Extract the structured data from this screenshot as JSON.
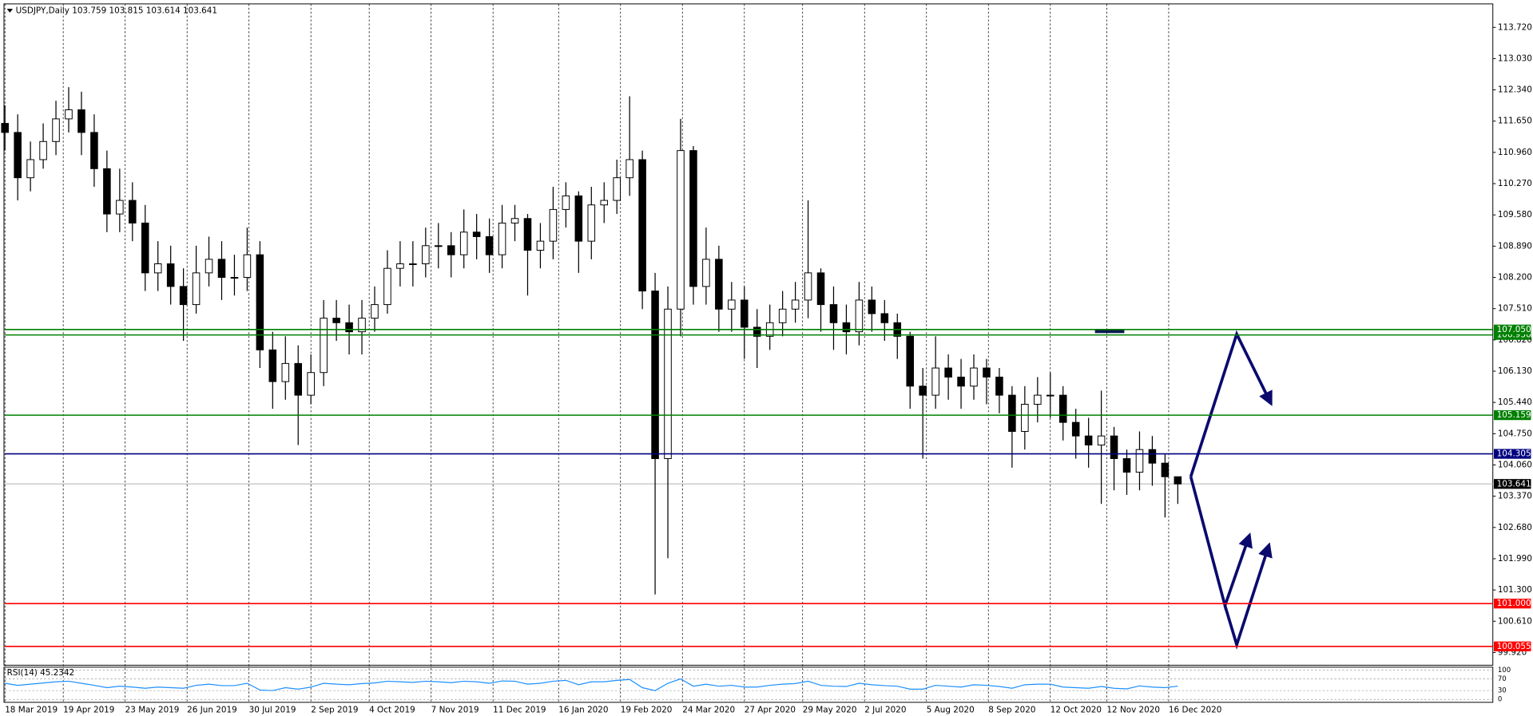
{
  "chart_data": {
    "type": "candlestick",
    "title": "USDJPY,Daily  103.759 103.815 103.614 103.641",
    "x": [
      "2019-03-18",
      "2019-03-25",
      "2019-04-01",
      "2019-04-08",
      "2019-04-15",
      "2019-04-22",
      "2019-04-29",
      "2019-05-06",
      "2019-05-13",
      "2019-05-20",
      "2019-05-27",
      "2019-06-03",
      "2019-06-10",
      "2019-06-17",
      "2019-06-24",
      "2019-07-01",
      "2019-07-08",
      "2019-07-15",
      "2019-07-22",
      "2019-07-29",
      "2019-08-05",
      "2019-08-12",
      "2019-08-19",
      "2019-08-26",
      "2019-09-02",
      "2019-09-09",
      "2019-09-16",
      "2019-09-23",
      "2019-09-30",
      "2019-10-07",
      "2019-10-14",
      "2019-10-21",
      "2019-10-28",
      "2019-11-04",
      "2019-11-11",
      "2019-11-18",
      "2019-11-25",
      "2019-12-02",
      "2019-12-09",
      "2019-12-16",
      "2019-12-23",
      "2019-12-30",
      "2020-01-06",
      "2020-01-13",
      "2020-01-20",
      "2020-01-27",
      "2020-02-03",
      "2020-02-10",
      "2020-02-17",
      "2020-02-24",
      "2020-03-02",
      "2020-03-09",
      "2020-03-16",
      "2020-03-23",
      "2020-03-30",
      "2020-04-06",
      "2020-04-13",
      "2020-04-20",
      "2020-04-27",
      "2020-05-04",
      "2020-05-11",
      "2020-05-18",
      "2020-05-25",
      "2020-06-01",
      "2020-06-08",
      "2020-06-15",
      "2020-06-22",
      "2020-06-29",
      "2020-07-06",
      "2020-07-13",
      "2020-07-20",
      "2020-07-27",
      "2020-08-03",
      "2020-08-10",
      "2020-08-17",
      "2020-08-24",
      "2020-08-31",
      "2020-09-07",
      "2020-09-14",
      "2020-09-21",
      "2020-09-28",
      "2020-10-05",
      "2020-10-12",
      "2020-10-19",
      "2020-10-26",
      "2020-11-02",
      "2020-11-09",
      "2020-11-16",
      "2020-11-23",
      "2020-11-30",
      "2020-12-07",
      "2020-12-14",
      "2020-12-21"
    ],
    "open": [
      111.6,
      111.4,
      110.4,
      110.8,
      111.2,
      111.7,
      111.9,
      111.4,
      110.6,
      109.6,
      109.9,
      109.4,
      108.3,
      108.5,
      108.0,
      107.6,
      108.3,
      108.6,
      108.2,
      108.2,
      108.7,
      106.6,
      105.9,
      106.3,
      105.6,
      106.1,
      107.3,
      107.2,
      107.0,
      107.3,
      107.6,
      108.4,
      108.5,
      108.5,
      108.9,
      108.9,
      108.7,
      109.2,
      109.1,
      108.7,
      109.4,
      109.5,
      108.8,
      109.0,
      109.7,
      110.0,
      109.0,
      109.8,
      109.9,
      110.4,
      110.8,
      107.9,
      104.2,
      107.5,
      111.0,
      108.0,
      108.6,
      107.5,
      107.7,
      107.1,
      106.9,
      107.2,
      107.5,
      107.7,
      108.3,
      107.6,
      107.2,
      107.0,
      107.7,
      107.4,
      107.2,
      106.9,
      105.8,
      105.6,
      106.2,
      106.0,
      105.8,
      106.2,
      106.0,
      105.6,
      104.8,
      105.4,
      105.6,
      105.6,
      105.0,
      104.7,
      104.5,
      104.7,
      104.2,
      103.9,
      104.4,
      104.1,
      103.8
    ],
    "high": [
      112.0,
      111.8,
      111.2,
      111.6,
      112.1,
      112.4,
      112.3,
      111.8,
      111.0,
      110.6,
      110.3,
      109.8,
      109.0,
      108.9,
      108.4,
      108.9,
      109.1,
      109.0,
      108.7,
      109.3,
      109.0,
      107.0,
      106.9,
      106.7,
      106.5,
      107.7,
      107.7,
      107.6,
      107.7,
      108.0,
      108.8,
      109.0,
      109.0,
      109.3,
      109.4,
      109.2,
      109.7,
      109.6,
      109.5,
      109.8,
      109.8,
      109.6,
      109.4,
      110.2,
      110.3,
      110.1,
      110.2,
      110.3,
      110.8,
      112.2,
      111.0,
      108.3,
      108.0,
      111.7,
      111.1,
      109.3,
      108.9,
      108.1,
      108.0,
      107.5,
      107.6,
      107.9,
      108.1,
      109.9,
      108.4,
      108.0,
      107.6,
      108.1,
      108.0,
      107.7,
      107.4,
      107.0,
      106.2,
      106.9,
      106.5,
      106.4,
      106.5,
      106.4,
      106.2,
      105.8,
      105.8,
      106.0,
      106.1,
      105.8,
      105.3,
      105.1,
      105.7,
      104.9,
      104.4,
      104.8,
      104.7,
      104.3,
      103.8
    ],
    "low": [
      111.0,
      109.9,
      110.1,
      110.6,
      110.9,
      111.4,
      110.9,
      110.2,
      109.2,
      109.2,
      109.0,
      107.9,
      107.9,
      107.6,
      106.8,
      107.4,
      108.0,
      107.7,
      107.8,
      107.9,
      106.2,
      105.3,
      105.5,
      104.5,
      105.4,
      105.8,
      106.8,
      106.5,
      106.5,
      107.0,
      107.4,
      108.0,
      108.0,
      108.2,
      108.4,
      108.2,
      108.4,
      108.6,
      108.3,
      108.4,
      109.0,
      107.8,
      108.4,
      108.6,
      109.3,
      108.3,
      108.6,
      109.4,
      109.6,
      110.0,
      107.5,
      101.2,
      102.0,
      106.9,
      107.6,
      107.6,
      107.0,
      107.0,
      106.4,
      106.2,
      106.6,
      106.9,
      107.2,
      107.3,
      107.0,
      106.6,
      106.5,
      106.7,
      107.0,
      106.8,
      106.4,
      105.3,
      104.2,
      105.3,
      105.5,
      105.3,
      105.5,
      105.4,
      105.2,
      104.0,
      104.4,
      105.0,
      105.1,
      104.6,
      104.2,
      104.0,
      103.2,
      103.5,
      103.4,
      103.5,
      103.6,
      102.9,
      103.2
    ],
    "close": [
      111.4,
      110.4,
      110.8,
      111.2,
      111.7,
      111.9,
      111.4,
      110.6,
      109.6,
      109.9,
      109.4,
      108.3,
      108.5,
      108.0,
      107.6,
      108.3,
      108.6,
      108.2,
      108.2,
      108.7,
      106.6,
      105.9,
      106.3,
      105.6,
      106.1,
      107.3,
      107.2,
      107.0,
      107.3,
      107.6,
      108.4,
      108.5,
      108.5,
      108.9,
      108.9,
      108.7,
      109.2,
      109.1,
      108.7,
      109.4,
      109.5,
      108.8,
      109.0,
      109.7,
      110.0,
      109.0,
      109.8,
      109.9,
      110.4,
      110.8,
      107.9,
      104.2,
      107.5,
      111.0,
      108.0,
      108.6,
      107.5,
      107.7,
      107.1,
      106.9,
      107.2,
      107.5,
      107.7,
      108.3,
      107.6,
      107.2,
      107.0,
      107.7,
      107.4,
      107.2,
      106.9,
      105.8,
      105.6,
      106.2,
      106.0,
      105.8,
      106.2,
      106.0,
      105.6,
      104.8,
      105.4,
      105.6,
      105.6,
      105.0,
      104.7,
      104.5,
      104.7,
      104.2,
      103.9,
      104.4,
      104.1,
      103.8,
      103.641
    ],
    "up_color": "#ffffff",
    "down_color": "#000000",
    "xlim": [
      "2019-03-18",
      "2021-06-12"
    ],
    "ylim": [
      99.661,
      114.216
    ],
    "yticks": [
      {
        "value": 113.72,
        "label": "113.720"
      },
      {
        "value": 113.03,
        "label": "113.030"
      },
      {
        "value": 112.34,
        "label": "112.340"
      },
      {
        "value": 111.65,
        "label": "111.650"
      },
      {
        "value": 110.96,
        "label": "110.960"
      },
      {
        "value": 110.27,
        "label": "110.270"
      },
      {
        "value": 109.58,
        "label": "109.580"
      },
      {
        "value": 108.89,
        "label": "108.890"
      },
      {
        "value": 108.2,
        "label": "108.200"
      },
      {
        "value": 107.51,
        "label": "107.510"
      },
      {
        "value": 106.82,
        "label": "106.820"
      },
      {
        "value": 106.13,
        "label": "106.130"
      },
      {
        "value": 105.44,
        "label": "105.440"
      },
      {
        "value": 104.75,
        "label": "104.750"
      },
      {
        "value": 104.06,
        "label": "104.060"
      },
      {
        "value": 103.37,
        "label": "103.370"
      },
      {
        "value": 102.68,
        "label": "102.680"
      },
      {
        "value": 101.99,
        "label": "101.990"
      },
      {
        "value": 101.3,
        "label": "101.300"
      },
      {
        "value": 100.61,
        "label": "100.610"
      },
      {
        "value": 99.92,
        "label": "99.920"
      }
    ],
    "xticks": [
      {
        "value": "2019-03-18",
        "label": "18 Mar 2019"
      },
      {
        "value": "2019-04-19",
        "label": "19 Apr 2019"
      },
      {
        "value": "2019-05-23",
        "label": "23 May 2019"
      },
      {
        "value": "2019-06-26",
        "label": "26 Jun 2019"
      },
      {
        "value": "2019-07-30",
        "label": "30 Jul 2019"
      },
      {
        "value": "2019-09-02",
        "label": "2 Sep 2019"
      },
      {
        "value": "2019-10-04",
        "label": "4 Oct 2019"
      },
      {
        "value": "2019-11-07",
        "label": "7 Nov 2019"
      },
      {
        "value": "2019-12-11",
        "label": "11 Dec 2019"
      },
      {
        "value": "2020-01-16",
        "label": "16 Jan 2020"
      },
      {
        "value": "2020-02-19",
        "label": "19 Feb 2020"
      },
      {
        "value": "2020-03-24",
        "label": "24 Mar 2020"
      },
      {
        "value": "2020-04-27",
        "label": "27 Apr 2020"
      },
      {
        "value": "2020-05-29",
        "label": "29 May 2020"
      },
      {
        "value": "2020-07-02",
        "label": "2 Jul 2020"
      },
      {
        "value": "2020-08-05",
        "label": "5 Aug 2020"
      },
      {
        "value": "2020-09-08",
        "label": "8 Sep 2020"
      },
      {
        "value": "2020-10-12",
        "label": "12 Oct 2020"
      },
      {
        "value": "2020-11-12",
        "label": "12 Nov 2020"
      },
      {
        "value": "2020-12-16",
        "label": "16 Dec 2020"
      }
    ],
    "levels": [
      {
        "value": 106.93,
        "label": "106.930",
        "color": "#008000"
      },
      {
        "value": 107.05,
        "label": "107.050",
        "color": "#008000"
      },
      {
        "value": 105.159,
        "label": "105.159",
        "color": "#008000"
      },
      {
        "value": 104.305,
        "label": "104.305",
        "color": "#000080"
      },
      {
        "value": 101.0,
        "label": "101.000",
        "color": "#ff0000"
      },
      {
        "value": 100.055,
        "label": "100.055",
        "color": "#ff0000"
      }
    ],
    "current": {
      "value": 103.641,
      "label": "103.641",
      "color": "#c0c0c0",
      "box": "#000000"
    },
    "rsi": {
      "title": "RSI(14) 45.2342",
      "color": "#1e90ff",
      "ylim": [
        0,
        100
      ],
      "yticks": [
        100,
        70,
        30,
        0
      ],
      "values": [
        55,
        48,
        52,
        56,
        60,
        62,
        55,
        48,
        40,
        45,
        42,
        38,
        42,
        40,
        38,
        48,
        52,
        47,
        47,
        55,
        32,
        30,
        40,
        35,
        42,
        55,
        52,
        50,
        54,
        56,
        62,
        60,
        58,
        62,
        60,
        57,
        62,
        60,
        55,
        63,
        62,
        52,
        55,
        62,
        65,
        50,
        60,
        60,
        65,
        68,
        40,
        30,
        55,
        70,
        45,
        52,
        45,
        48,
        42,
        42,
        48,
        52,
        54,
        62,
        48,
        45,
        44,
        55,
        50,
        47,
        45,
        35,
        35,
        48,
        45,
        42,
        50,
        48,
        44,
        38,
        50,
        52,
        52,
        42,
        40,
        38,
        44,
        38,
        36,
        46,
        42,
        40,
        45.2342
      ]
    }
  }
}
